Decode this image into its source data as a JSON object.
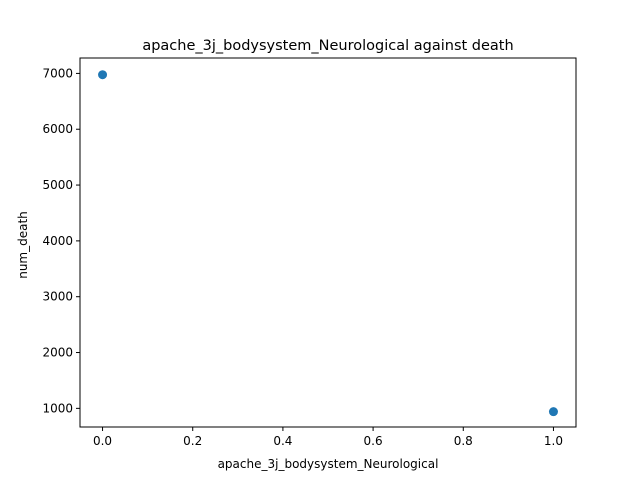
{
  "chart_data": {
    "type": "scatter",
    "title": "apache_3j_bodysystem_Neurological against death",
    "xlabel": "apache_3j_bodysystem_Neurological",
    "ylabel": "num_death",
    "xlim": [
      -0.05,
      1.05
    ],
    "ylim": [
      666,
      7276
    ],
    "x_ticks": [
      0.0,
      0.2,
      0.4,
      0.6,
      0.8,
      1.0
    ],
    "x_tick_labels": [
      "0.0",
      "0.2",
      "0.4",
      "0.6",
      "0.8",
      "1.0"
    ],
    "y_ticks": [
      1000,
      2000,
      3000,
      4000,
      5000,
      6000,
      7000
    ],
    "y_tick_labels": [
      "1000",
      "2000",
      "3000",
      "4000",
      "5000",
      "6000",
      "7000"
    ],
    "grid": false,
    "marker_color": "#1f77b4",
    "points": [
      {
        "x": 0,
        "y": 6977
      },
      {
        "x": 1,
        "y": 941
      }
    ]
  }
}
